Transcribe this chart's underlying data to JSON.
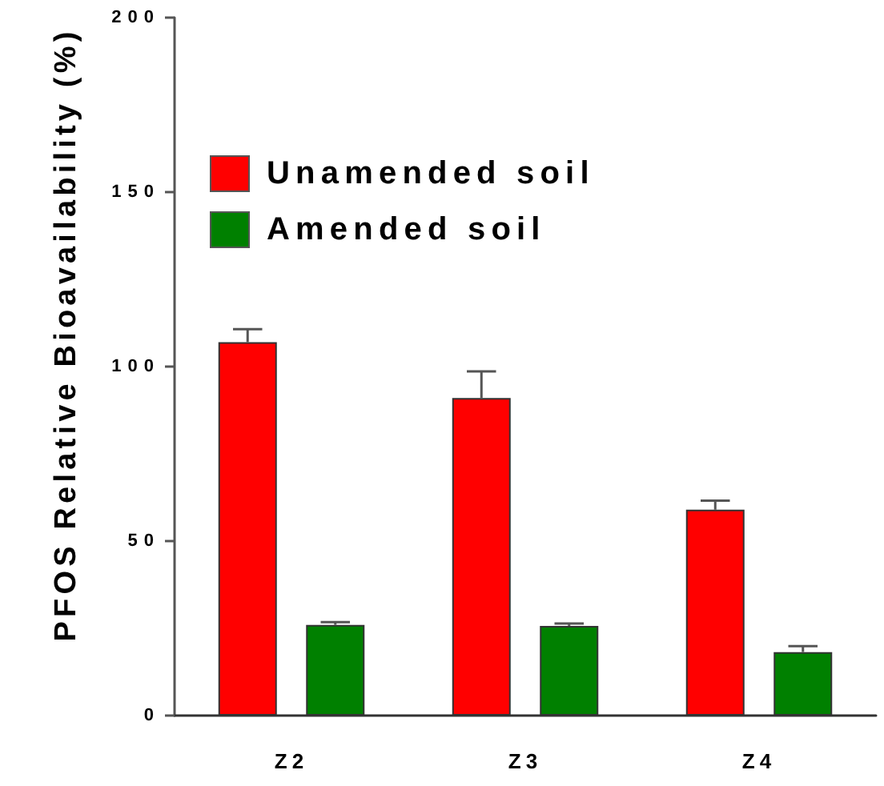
{
  "chart_data": {
    "type": "bar",
    "ylabel": "PFOS Relative Bioavailability (%)",
    "categories": [
      "Z2",
      "Z3",
      "Z4"
    ],
    "series": [
      {
        "name": "Unamended soil",
        "color": "#ff0000",
        "values": [
          107,
          91,
          59
        ],
        "errors": [
          [
            107,
            110.7
          ],
          [
            91,
            98.6
          ],
          [
            59,
            61.6
          ]
        ]
      },
      {
        "name": "Amended soil",
        "color": "#008000",
        "values": [
          26,
          25.7,
          18.2
        ],
        "errors": [
          [
            26,
            26.8
          ],
          [
            25.7,
            26.4
          ],
          [
            18.2,
            19.9
          ]
        ]
      }
    ],
    "ylim": [
      0,
      200
    ],
    "yticks": [
      0,
      50,
      100,
      150,
      200
    ],
    "grid": false,
    "legend": "top left"
  }
}
